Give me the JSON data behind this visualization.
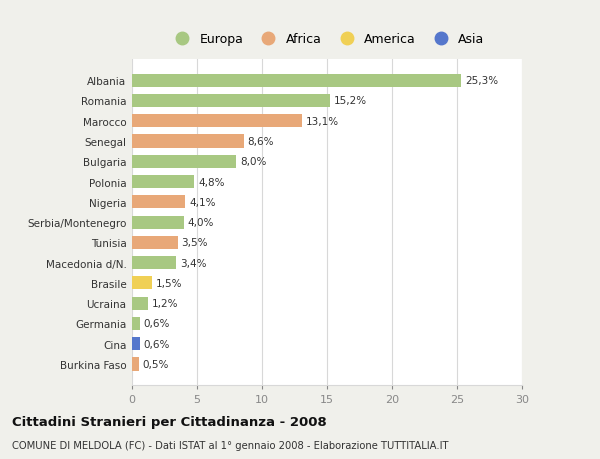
{
  "categories": [
    "Albania",
    "Romania",
    "Marocco",
    "Senegal",
    "Bulgaria",
    "Polonia",
    "Nigeria",
    "Serbia/Montenegro",
    "Tunisia",
    "Macedonia d/N.",
    "Brasile",
    "Ucraina",
    "Germania",
    "Cina",
    "Burkina Faso"
  ],
  "values": [
    25.3,
    15.2,
    13.1,
    8.6,
    8.0,
    4.8,
    4.1,
    4.0,
    3.5,
    3.4,
    1.5,
    1.2,
    0.6,
    0.6,
    0.5
  ],
  "labels": [
    "25,3%",
    "15,2%",
    "13,1%",
    "8,6%",
    "8,0%",
    "4,8%",
    "4,1%",
    "4,0%",
    "3,5%",
    "3,4%",
    "1,5%",
    "1,2%",
    "0,6%",
    "0,6%",
    "0,5%"
  ],
  "continents": [
    "Europa",
    "Europa",
    "Africa",
    "Africa",
    "Europa",
    "Europa",
    "Africa",
    "Europa",
    "Africa",
    "Europa",
    "America",
    "Europa",
    "Europa",
    "Asia",
    "Africa"
  ],
  "colors": {
    "Europa": "#a8c882",
    "Africa": "#e8a878",
    "America": "#f0d055",
    "Asia": "#5577cc"
  },
  "xlim": [
    0,
    30
  ],
  "xticks": [
    0,
    5,
    10,
    15,
    20,
    25,
    30
  ],
  "title": "Cittadini Stranieri per Cittadinanza - 2008",
  "subtitle": "COMUNE DI MELDOLA (FC) - Dati ISTAT al 1° gennaio 2008 - Elaborazione TUTTITALIA.IT",
  "fig_bg": "#f0f0eb",
  "plot_bg": "#ffffff",
  "bar_height": 0.65,
  "grid_color": "#d8d8d8"
}
